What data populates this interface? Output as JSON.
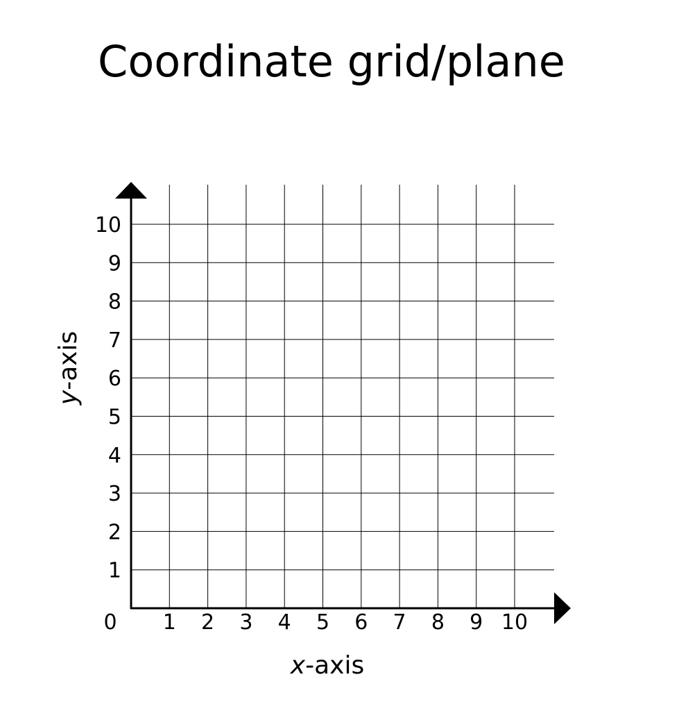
{
  "title": "Coordinate grid/plane",
  "x_axis": {
    "variable": "x",
    "suffix": "-axis",
    "ticks": [
      "1",
      "2",
      "3",
      "4",
      "5",
      "6",
      "7",
      "8",
      "9",
      "10"
    ]
  },
  "y_axis": {
    "variable": "y",
    "suffix": "-axis",
    "ticks": [
      "1",
      "2",
      "3",
      "4",
      "5",
      "6",
      "7",
      "8",
      "9",
      "10"
    ]
  },
  "origin_label": "0",
  "colors": {
    "ink": "#000000",
    "background": "#ffffff"
  }
}
